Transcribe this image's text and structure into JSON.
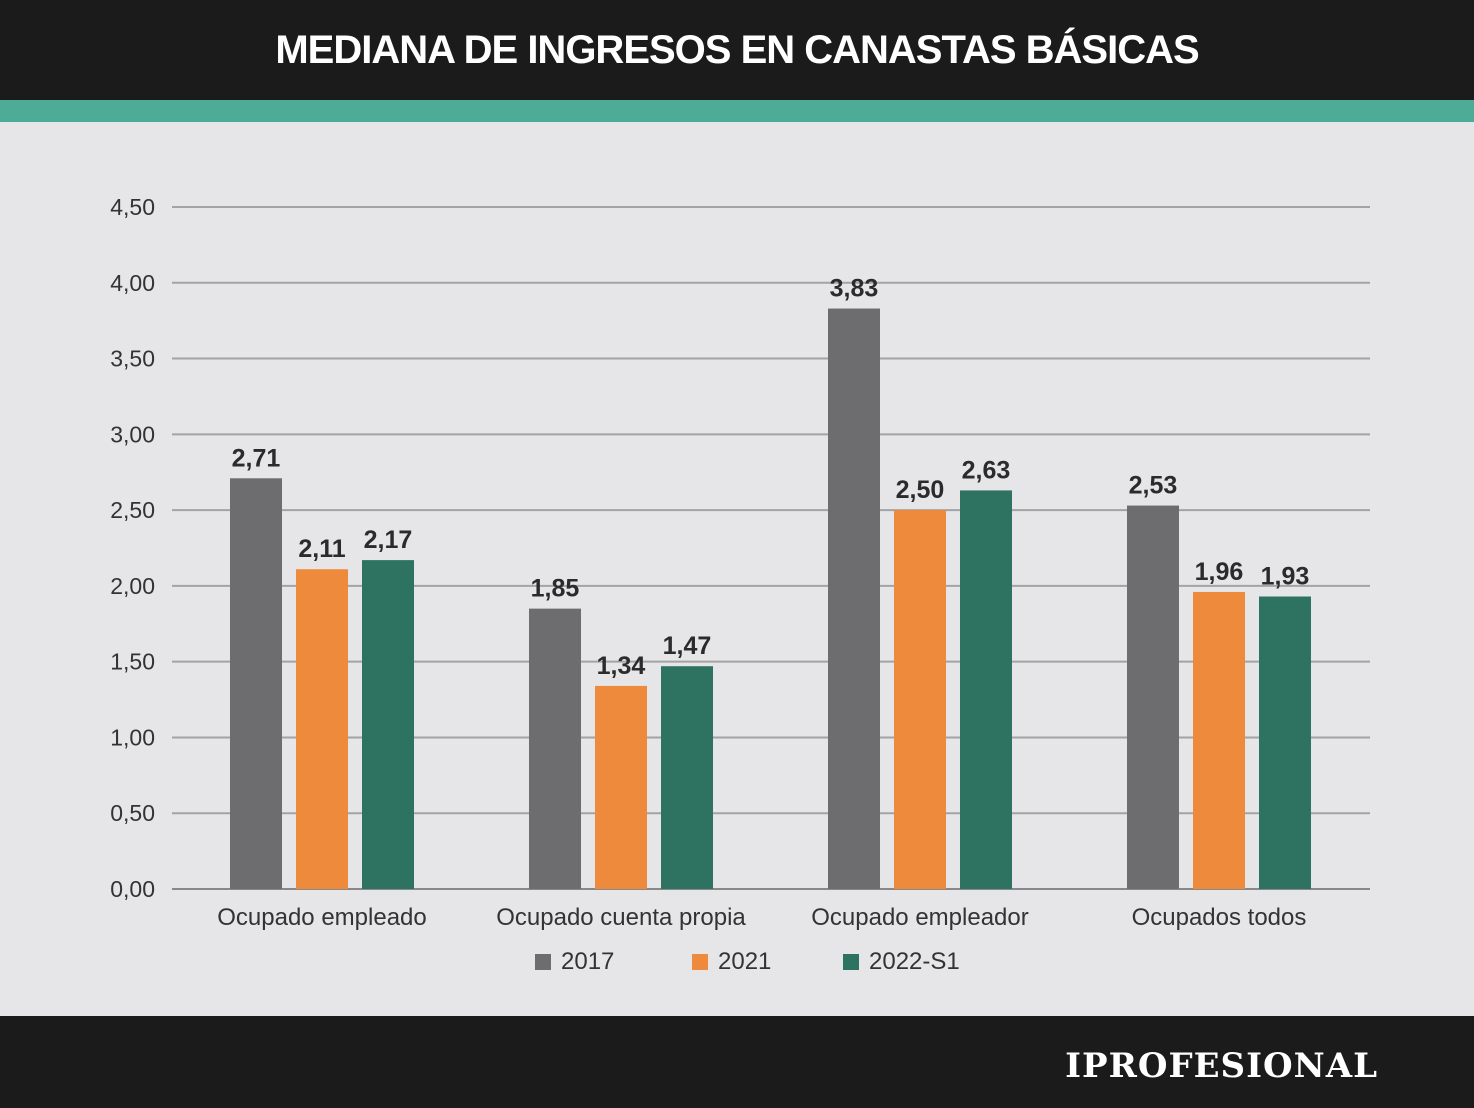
{
  "header": {
    "title": "MEDIANA DE INGRESOS EN CANASTAS BÁSICAS"
  },
  "footer": {
    "brand": "IPROFESIONAL"
  },
  "colors": {
    "header_bg": "#1b1b1b",
    "accent": "#4eab96",
    "background": "#e6e6e8",
    "series_2017": "#6d6d70",
    "series_2021": "#ee8a3b",
    "series_2022": "#2e7262"
  },
  "chart_data": {
    "type": "bar",
    "title": "MEDIANA DE INGRESOS EN CANASTAS BÁSICAS",
    "xlabel": "",
    "ylabel": "",
    "ylim": [
      0,
      4.5
    ],
    "grid": true,
    "legend_position": "bottom",
    "y_ticks": [
      "0,00",
      "0,50",
      "1,00",
      "1,50",
      "2,00",
      "2,50",
      "3,00",
      "3,50",
      "4,00",
      "4,50"
    ],
    "categories": [
      "Ocupado empleado",
      "Ocupado cuenta propia",
      "Ocupado empleador",
      "Ocupados todos"
    ],
    "series": [
      {
        "name": "2017",
        "color": "#6d6d70",
        "values": [
          2.71,
          1.85,
          3.83,
          2.53
        ],
        "labels": [
          "2,71",
          "1,85",
          "3,83",
          "2,53"
        ]
      },
      {
        "name": "2021",
        "color": "#ee8a3b",
        "values": [
          2.11,
          1.34,
          2.5,
          1.96
        ],
        "labels": [
          "2,11",
          "1,34",
          "2,50",
          "1,96"
        ]
      },
      {
        "name": "2022-S1",
        "color": "#2e7262",
        "values": [
          2.17,
          1.47,
          2.63,
          1.93
        ],
        "labels": [
          "2,17",
          "1,47",
          "2,63",
          "1,93"
        ]
      }
    ]
  }
}
